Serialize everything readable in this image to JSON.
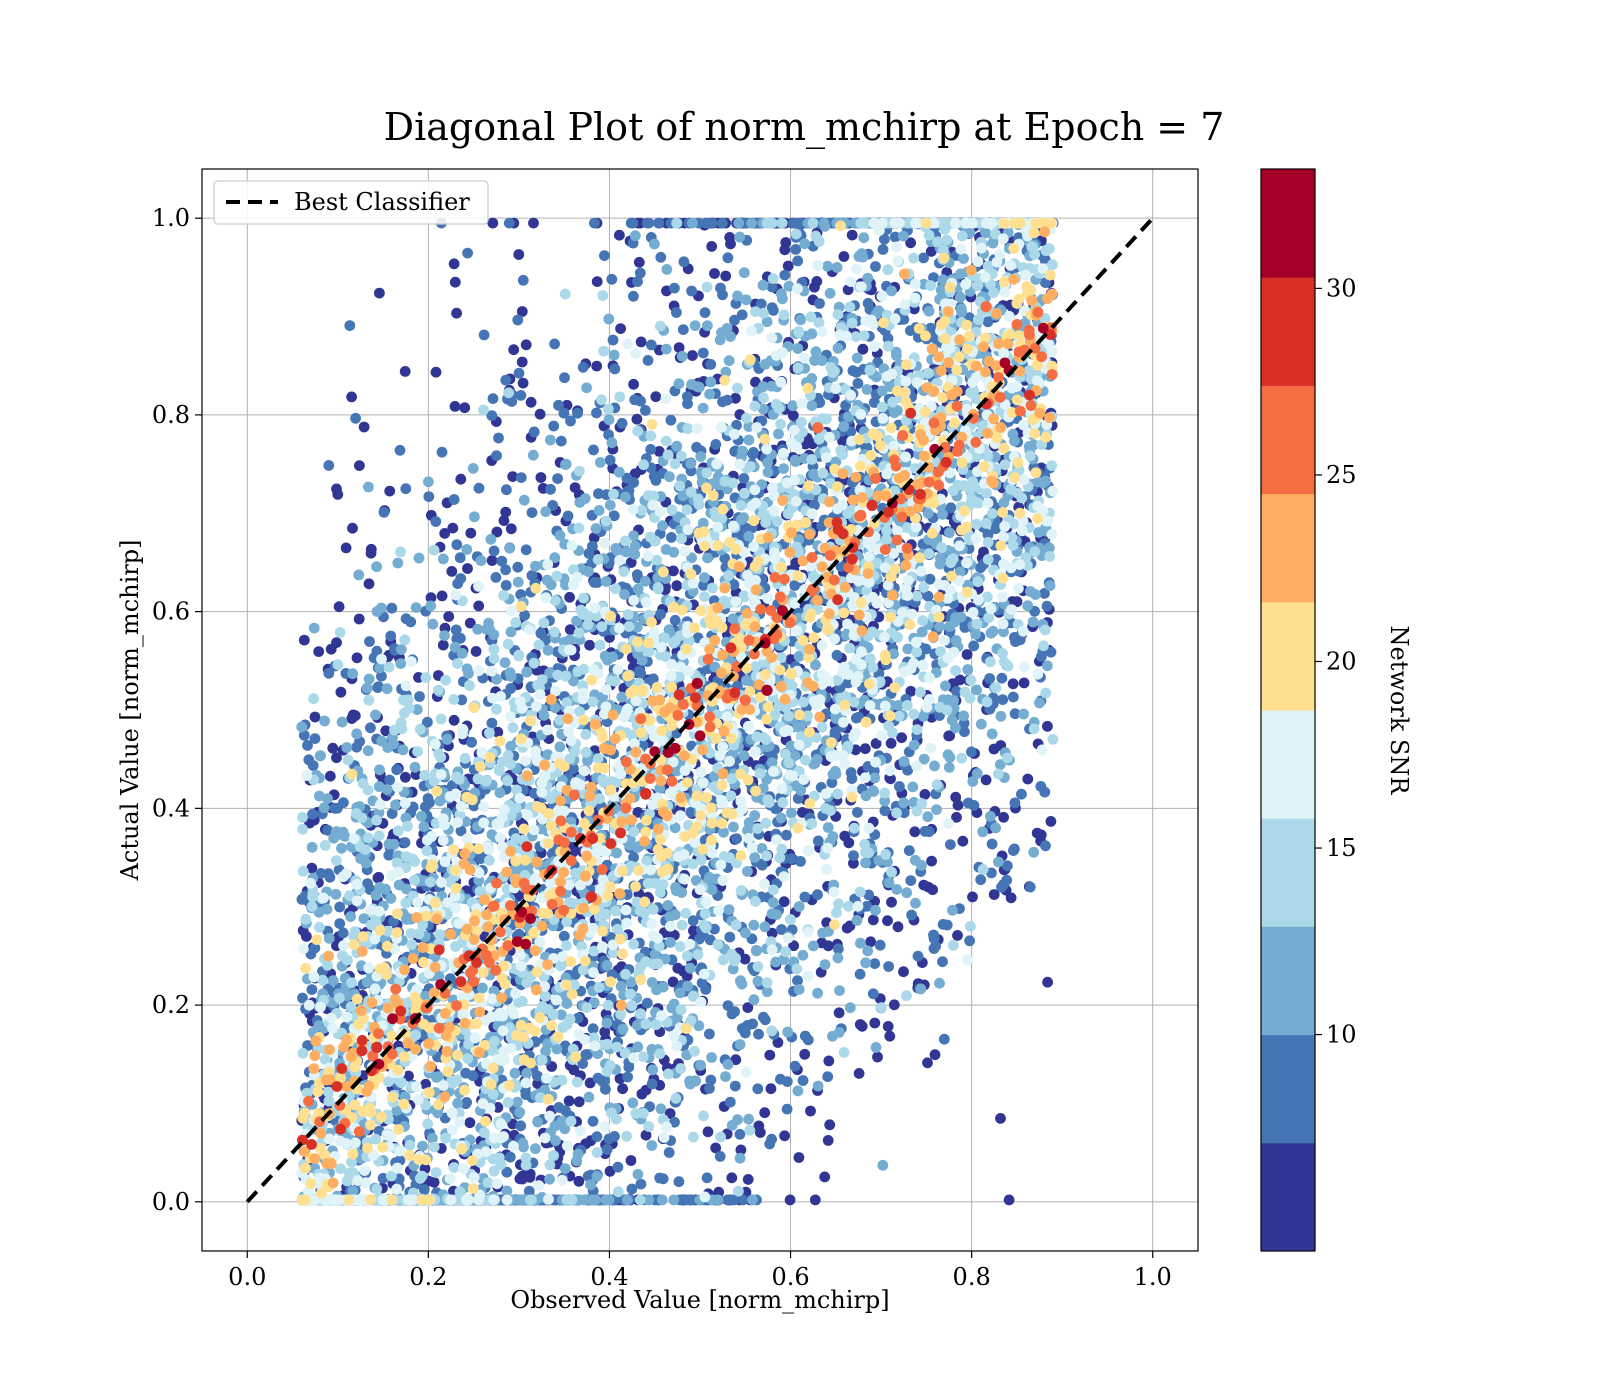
{
  "chart_data": {
    "type": "scatter",
    "title": "Diagonal Plot of norm_mchirp at Epoch = 7",
    "xlabel": "Observed Value [norm_mchirp]",
    "ylabel": "Actual Value [norm_mchirp]",
    "xlim": [
      -0.05,
      1.05
    ],
    "ylim": [
      -0.05,
      1.05
    ],
    "xticks": [
      "0.0",
      "0.2",
      "0.4",
      "0.6",
      "0.8",
      "1.0"
    ],
    "yticks": [
      "0.0",
      "0.2",
      "0.4",
      "0.6",
      "0.8",
      "1.0"
    ],
    "grid": true,
    "legend": {
      "position": "top-left",
      "entries": [
        "Best Classifier"
      ]
    },
    "reference_line": {
      "name": "Best Classifier",
      "style": "dashed",
      "color": "#000000",
      "x": [
        0,
        1
      ],
      "y": [
        0,
        1
      ]
    },
    "colorbar": {
      "label": "Network SNR",
      "range": [
        4.2,
        33.2
      ],
      "ticks": [
        "10",
        "15",
        "20",
        "25",
        "30"
      ],
      "tick_values": [
        10,
        15,
        20,
        25,
        30
      ],
      "bins": 10,
      "colors": [
        "#313695",
        "#4575b4",
        "#74add1",
        "#abd9e9",
        "#e0f3f8",
        "#fee090",
        "#fdae61",
        "#f46d43",
        "#d73027",
        "#a50026"
      ]
    },
    "series_summary": {
      "approx_points": 20000,
      "x_range": [
        0.05,
        0.89
      ],
      "y_range": [
        0.0,
        0.995
      ],
      "trend": "points cluster along y = x for high SNR; low SNR points scatter widely"
    },
    "highlight_points": [
      {
        "x": 0.497,
        "y": 0.527,
        "snr": 32
      },
      {
        "x": 0.574,
        "y": 0.52,
        "snr": 31
      },
      {
        "x": 0.465,
        "y": 0.457,
        "snr": 31
      },
      {
        "x": 0.245,
        "y": 0.25,
        "snr": 30
      },
      {
        "x": 0.143,
        "y": 0.157,
        "snr": 29
      },
      {
        "x": 0.38,
        "y": 0.31,
        "snr": 29
      },
      {
        "x": 0.69,
        "y": 0.708,
        "snr": 28
      },
      {
        "x": 0.63,
        "y": 0.787,
        "snr": 27
      },
      {
        "x": 0.816,
        "y": 0.91,
        "snr": 26
      },
      {
        "x": 0.625,
        "y": 0.623,
        "snr": 27
      },
      {
        "x": 0.44,
        "y": 0.415,
        "snr": 28
      },
      {
        "x": 0.55,
        "y": 0.51,
        "snr": 26
      }
    ]
  }
}
